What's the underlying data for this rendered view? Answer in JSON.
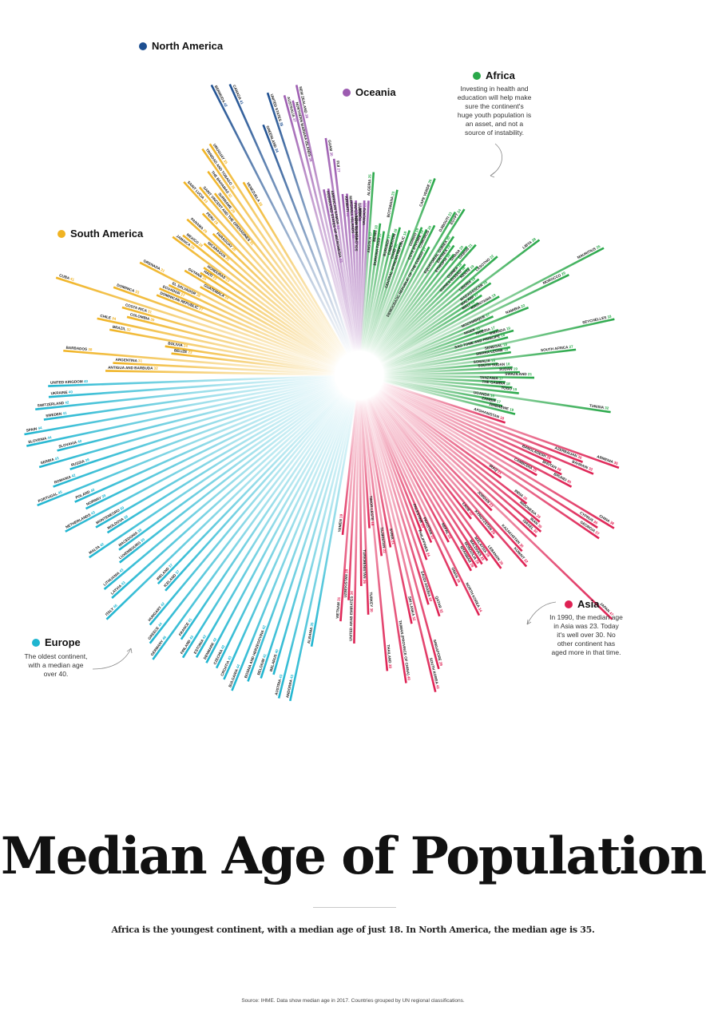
{
  "title": "Median Age of Population",
  "subtitle": "Africa is the youngest continent, with a median age of just 18. In North America, the median age is 35.",
  "source": "Source: IHME. Data show median age in 2017. Countries grouped by UN regional classifications.",
  "legend": {
    "north_america": "North America",
    "oceania": "Oceania",
    "africa": "Africa",
    "south_america": "South America",
    "europe": "Europe",
    "asia": "Asia"
  },
  "notes": {
    "africa": "Investing in health and education will help make sure the continent's huge youth population is an asset, and not a source of instability.",
    "europe": "The oldest continent, with a median age over 40.",
    "asia": "In 1990, the median age in Asia was 23. Today it's well over 30. No other continent has aged more in that time."
  },
  "colors": {
    "north_america": "#1d4f91",
    "oceania": "#9c5bb0",
    "africa": "#2aa84a",
    "south_america": "#f0b323",
    "europe": "#1fb5d0",
    "asia": "#de2153"
  },
  "chart_data": {
    "type": "radial-bar",
    "title": "Median Age of Population",
    "series": [
      {
        "name": "Africa",
        "color_key": "africa",
        "countries": [
          [
            "ALGERIA",
            25
          ],
          [
            "ANGOLA",
            17
          ],
          [
            "BENIN",
            18
          ],
          [
            "BURKINA FASO",
            17
          ],
          [
            "BOTSWANA",
            23
          ],
          [
            "BURUNDI",
            17
          ],
          [
            "CAMEROON",
            18
          ],
          [
            "CHAD",
            16
          ],
          [
            "CENTRAL AFRICAN REPUBLIC",
            18
          ],
          [
            "CAPE VERDE",
            26
          ],
          [
            "CONGO",
            19
          ],
          [
            "COTE D'IVOIRE",
            19
          ],
          [
            "COMOROS",
            20
          ],
          [
            "DEMOCRATIC REPUBLIC OF THE CONGO",
            17
          ],
          [
            "DJIBOUTI",
            23
          ],
          [
            "EGYPT",
            24
          ],
          [
            "EQUATORIAL GUINEA",
            20
          ],
          [
            "ERITREA",
            19
          ],
          [
            "ETHIOPIA",
            18
          ],
          [
            "GHANA",
            20
          ],
          [
            "GABON",
            21
          ],
          [
            "GUINEA",
            18
          ],
          [
            "GUINEA-BISSAU",
            18
          ],
          [
            "KENYA",
            19
          ],
          [
            "LESOTHO",
            22
          ],
          [
            "LIBERIA",
            18
          ],
          [
            "LIBYA",
            28
          ],
          [
            "MADAGASCAR",
            19
          ],
          [
            "MALAWI",
            17
          ],
          [
            "MALI",
            16
          ],
          [
            "MAURITANIA",
            19
          ],
          [
            "MAURITIUS",
            35
          ],
          [
            "MOROCCO",
            29
          ],
          [
            "MOZAMBIQUE",
            17
          ],
          [
            "NAMIBIA",
            22
          ],
          [
            "NIGER",
            15
          ],
          [
            "NIGERIA",
            17
          ],
          [
            "RWANDA",
            19
          ],
          [
            "SAO TOME AND PRINCIPE",
            18
          ],
          [
            "SEYCHELLES",
            33
          ],
          [
            "SENEGAL",
            18
          ],
          [
            "SIERRA LEONE",
            18
          ],
          [
            "SOUTH AFRICA",
            27
          ],
          [
            "SOMALIA",
            16
          ],
          [
            "SOUTH SUDAN",
            18
          ],
          [
            "SUDAN",
            19
          ],
          [
            "SWAZILAND",
            21
          ],
          [
            "TANZANIA",
            17
          ],
          [
            "THE GAMBIA",
            18
          ],
          [
            "TOGO",
            19
          ],
          [
            "TUNISIA",
            32
          ],
          [
            "UGANDA",
            16
          ],
          [
            "ZAMBIA",
            17
          ],
          [
            "ZIMBABWE",
            19
          ]
        ]
      },
      {
        "name": "Asia",
        "color_key": "asia",
        "countries": [
          [
            "AFGHANISTAN",
            18
          ],
          [
            "ARMENIA",
            35
          ],
          [
            "AZERBAIJAN",
            30
          ],
          [
            "BAHRAIN",
            32
          ],
          [
            "BANGLADESH",
            26
          ],
          [
            "BHUTAN",
            28
          ],
          [
            "BRUNEI",
            30
          ],
          [
            "CAMBODIA",
            25
          ],
          [
            "CHINA",
            38
          ],
          [
            "CYPRUS",
            36
          ],
          [
            "GEORGIA",
            37
          ],
          [
            "IRAQ",
            21
          ],
          [
            "INDIA",
            26
          ],
          [
            "INDONESIA",
            29
          ],
          [
            "IRAN",
            30
          ],
          [
            "ISRAEL",
            30
          ],
          [
            "JAPAN",
            47
          ],
          [
            "JORDAN",
            23
          ],
          [
            "KAZAKHSTAN",
            30
          ],
          [
            "KUWAIT",
            32
          ],
          [
            "KYRGYZSTAN",
            26
          ],
          [
            "LAOS",
            22
          ],
          [
            "LEBANON",
            30
          ],
          [
            "MALAYSIA",
            28
          ],
          [
            "MALDIVES",
            28
          ],
          [
            "MONGOLIA",
            28
          ],
          [
            "MYANMAR",
            28
          ],
          [
            "NEPAL",
            23
          ],
          [
            "NORTH KOREA",
            34
          ],
          [
            "OMAN",
            29
          ],
          [
            "PAKISTAN",
            22
          ],
          [
            "PALESTINE",
            20
          ],
          [
            "PHILIPPINES",
            24
          ],
          [
            "QATAR",
            32
          ],
          [
            "SAUDI ARABIA",
            30
          ],
          [
            "SINGAPORE",
            39
          ],
          [
            "SOUTH KOREA",
            42
          ],
          [
            "SRI LANKA",
            32
          ],
          [
            "SYRIA",
            21
          ],
          [
            "TAIWAN (PROVINCE OF CHINA)",
            40
          ],
          [
            "TAJIKISTAN",
            22
          ],
          [
            "THAILAND",
            38
          ],
          [
            "TIMOR-LESTE",
            18
          ],
          [
            "TURKEY",
            30
          ],
          [
            "TURKMENISTAN",
            26
          ],
          [
            "UNITED ARAB EMIRATES",
            34
          ],
          [
            "UZBEKISTAN",
            28
          ],
          [
            "VIETNAM",
            31
          ],
          [
            "YEMEN",
            19
          ]
        ]
      },
      {
        "name": "Europe",
        "color_key": "europe",
        "countries": [
          [
            "ALBANIA",
            35
          ],
          [
            "ANDORRA",
            43
          ],
          [
            "AUSTRIA",
            43
          ],
          [
            "BELARUS",
            40
          ],
          [
            "BELGIUM",
            41
          ],
          [
            "BOSNIA AND HERZEGOVINA",
            42
          ],
          [
            "BULGARIA",
            44
          ],
          [
            "CROATIA",
            43
          ],
          [
            "CZECHIA",
            42
          ],
          [
            "DENMARK",
            42
          ],
          [
            "ESTONIA",
            42
          ],
          [
            "FINLAND",
            43
          ],
          [
            "FRANCE",
            41
          ],
          [
            "GERMANY",
            46
          ],
          [
            "GREECE",
            44
          ],
          [
            "HUNGARY",
            42
          ],
          [
            "ICELAND",
            37
          ],
          [
            "IRELAND",
            37
          ],
          [
            "ITALY",
            46
          ],
          [
            "LATVIA",
            43
          ],
          [
            "LITHUANIA",
            43
          ],
          [
            "LUXEMBOURG",
            39
          ],
          [
            "MACEDONIA",
            38
          ],
          [
            "MALTA",
            42
          ],
          [
            "MOLDOVA",
            38
          ],
          [
            "MONTENEGRO",
            39
          ],
          [
            "NETHERLANDS",
            43
          ],
          [
            "NORWAY",
            39
          ],
          [
            "POLAND",
            40
          ],
          [
            "PORTUGAL",
            45
          ],
          [
            "ROMANIA",
            42
          ],
          [
            "RUSSIA",
            39
          ],
          [
            "SERBIA",
            43
          ],
          [
            "SLOVAKIA",
            40
          ],
          [
            "SLOVENIA",
            44
          ],
          [
            "SPAIN",
            44
          ],
          [
            "SWEDEN",
            41
          ],
          [
            "SWITZERLAND",
            42
          ],
          [
            "UKRAINE",
            40
          ],
          [
            "UNITED KINGDOM",
            40
          ]
        ]
      },
      {
        "name": "South America",
        "color_key": "south_america",
        "countries": [
          [
            "ANTIGUA AND BARBUDA",
            32
          ],
          [
            "ARGENTINA",
            31
          ],
          [
            "BARBADOS",
            38
          ],
          [
            "BELIZE",
            23
          ],
          [
            "BOLIVIA",
            24
          ],
          [
            "BRAZIL",
            32
          ],
          [
            "CHILE",
            34
          ],
          [
            "COLOMBIA",
            30
          ],
          [
            "COSTA RICA",
            31
          ],
          [
            "CUBA",
            41
          ],
          [
            "DOMINICA",
            33
          ],
          [
            "DOMINICAN REPUBLIC",
            27
          ],
          [
            "ECUADOR",
            27
          ],
          [
            "EL SALVADOR",
            26
          ],
          [
            "GRENADA",
            31
          ],
          [
            "GUATEMALA",
            22
          ],
          [
            "GUYANA",
            25
          ],
          [
            "HAITI",
            23
          ],
          [
            "HONDURAS",
            23
          ],
          [
            "JAMAICA",
            29
          ],
          [
            "MEXICO",
            28
          ],
          [
            "NICARAGUA",
            25
          ],
          [
            "PANAMA",
            29
          ],
          [
            "PARAGUAY",
            25
          ],
          [
            "PERU",
            28
          ],
          [
            "SAINT LUCIA",
            33
          ],
          [
            "SAINT VINCENT AND THE GRENADINES",
            31
          ],
          [
            "SURINAME",
            29
          ],
          [
            "THE BAHAMAS",
            32
          ],
          [
            "TRINIDAD AND TOBAGO",
            35
          ],
          [
            "URUGUAY",
            35
          ],
          [
            "VENEZUELA",
            28
          ]
        ]
      },
      {
        "name": "North America",
        "color_key": "north_america",
        "countries": [
          [
            "BERMUDA",
            42
          ],
          [
            "CANADA",
            41
          ],
          [
            "GREENLAND",
            34
          ],
          [
            "UNITED STATES",
            38
          ]
        ]
      },
      {
        "name": "Oceania",
        "color_key": "oceania",
        "countries": [
          [
            "AUSTRALIA",
            37
          ],
          [
            "NORTHERN MARIANA ISLANDS",
            36
          ],
          [
            "NEW ZEALAND",
            38
          ],
          [
            "FEDERATED STATES OF MICRONESIA",
            23
          ],
          [
            "AMERICAN SAMOA",
            23
          ],
          [
            "GUAM",
            30
          ],
          [
            "FIJI",
            27
          ],
          [
            "KIRIBATI",
            22
          ],
          [
            "MARSHALL ISLANDS",
            22
          ],
          [
            "PAPUA NEW GUINEA",
            21
          ],
          [
            "SAMOA",
            21
          ],
          [
            "SOLOMON ISLANDS",
            20
          ],
          [
            "TONGA",
            21
          ],
          [
            "VANUATU",
            21
          ]
        ]
      }
    ]
  }
}
